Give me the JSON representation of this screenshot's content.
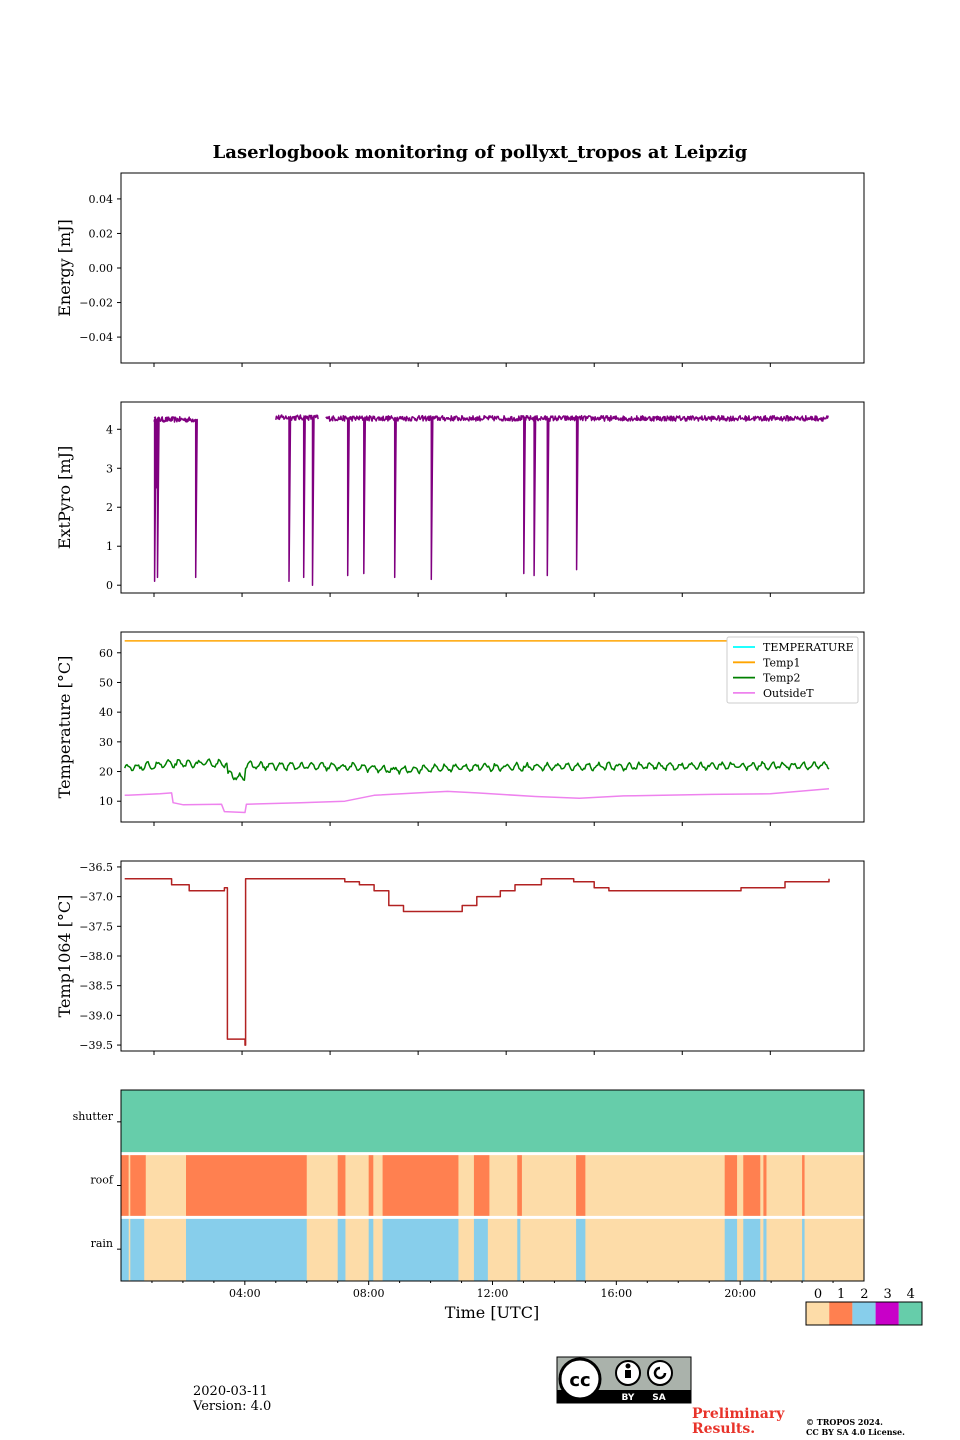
{
  "chart_data": {
    "type": "line",
    "title": "Laserlogbook monitoring of pollyxt_tropos at Leipzig",
    "xlabel": "Time [UTC]",
    "x_range_hours": [
      0,
      24
    ],
    "x_ticks": [
      "04:00",
      "08:00",
      "12:00",
      "16:00",
      "20:00"
    ],
    "panels": [
      {
        "id": "energy",
        "ylabel": "Energy [mJ]",
        "ylim": [
          -0.055,
          0.055
        ],
        "yticks": [
          0.04,
          0.02,
          0.0,
          -0.02,
          -0.04
        ],
        "ytick_labels": [
          "0.04",
          "0.02",
          "0.00",
          "−0.02",
          "−0.04"
        ],
        "series": []
      },
      {
        "id": "extpyro",
        "ylabel": "ExtPyro [mJ]",
        "ylim": [
          -0.2,
          4.7
        ],
        "yticks": [
          0,
          1,
          2,
          3,
          4
        ],
        "ytick_labels": [
          "0",
          "1",
          "2",
          "3",
          "4"
        ],
        "series": [
          {
            "name": "ExtPyro",
            "color": "#800080",
            "segments": [
              {
                "start": 1.0,
                "end": 2.45,
                "level": 4.25,
                "noise": 0.07,
                "dips": [
                  [
                    1.02,
                    0.1
                  ],
                  [
                    1.12,
                    0.2
                  ],
                  [
                    1.08,
                    2.5
                  ],
                  [
                    2.42,
                    0.2
                  ]
                ]
              },
              {
                "start": 5.15,
                "end": 6.6,
                "level": 4.3,
                "noise": 0.07,
                "dips": [
                  [
                    5.6,
                    0.1
                  ],
                  [
                    6.1,
                    0.2
                  ],
                  [
                    6.4,
                    0.0
                  ]
                ]
              },
              {
                "start": 6.85,
                "end": 24.0,
                "level": 4.28,
                "noise": 0.07,
                "dips": [
                  [
                    7.6,
                    0.25
                  ],
                  [
                    8.15,
                    0.3
                  ],
                  [
                    9.2,
                    0.2
                  ],
                  [
                    10.45,
                    0.15
                  ],
                  [
                    13.6,
                    0.3
                  ],
                  [
                    13.95,
                    0.25
                  ],
                  [
                    14.4,
                    0.25
                  ],
                  [
                    15.4,
                    0.4
                  ]
                ]
              }
            ]
          }
        ]
      },
      {
        "id": "temperature",
        "ylabel": "Temperature [°C]",
        "ylim": [
          3,
          67
        ],
        "yticks": [
          10,
          20,
          30,
          40,
          50,
          60
        ],
        "ytick_labels": [
          "10",
          "20",
          "30",
          "40",
          "50",
          "60"
        ],
        "legend_position": "top-right",
        "series": [
          {
            "name": "TEMPERATURE",
            "color": "#00ffff",
            "points": []
          },
          {
            "name": "Temp1",
            "color": "#ffa500",
            "points": [
              [
                0,
                64
              ],
              [
                24,
                64
              ]
            ]
          },
          {
            "name": "Temp2",
            "color": "#008000",
            "base": 21.5,
            "noise": 1.2,
            "points": [
              [
                0,
                21
              ],
              [
                1.5,
                22.5
              ],
              [
                3.5,
                22.8
              ],
              [
                3.4,
                22.8
              ],
              [
                3.45,
                19
              ],
              [
                4.1,
                18
              ],
              [
                4.1,
                22
              ],
              [
                8,
                21.5
              ],
              [
                9,
                20.5
              ],
              [
                12,
                21.5
              ],
              [
                24,
                22
              ]
            ]
          },
          {
            "name": "OutsideT",
            "color": "#ee82ee",
            "points": [
              [
                0,
                12
              ],
              [
                1.2,
                12.5
              ],
              [
                1.6,
                12.8
              ],
              [
                1.65,
                9.5
              ],
              [
                2.0,
                8.8
              ],
              [
                3.3,
                9
              ],
              [
                3.4,
                6.5
              ],
              [
                4.1,
                6.2
              ],
              [
                4.15,
                9
              ],
              [
                6,
                9.5
              ],
              [
                7.5,
                10
              ],
              [
                8.5,
                12
              ],
              [
                10,
                12.8
              ],
              [
                11,
                13.3
              ],
              [
                12,
                12.8
              ],
              [
                14,
                11.6
              ],
              [
                15.5,
                11
              ],
              [
                17,
                11.8
              ],
              [
                20,
                12.3
              ],
              [
                22,
                12.5
              ],
              [
                24,
                14.2
              ]
            ]
          }
        ]
      },
      {
        "id": "temp1064",
        "ylabel": "Temp1064 [°C]",
        "ylim": [
          -39.6,
          -36.4
        ],
        "yticks": [
          -36.5,
          -37.0,
          -37.5,
          -38.0,
          -38.5,
          -39.0,
          -39.5
        ],
        "ytick_labels": [
          "−36.5",
          "−37.0",
          "−37.5",
          "−38.0",
          "−38.5",
          "−39.0",
          "−39.5"
        ],
        "series": [
          {
            "name": "Temp1064",
            "color": "#b22222",
            "points": [
              [
                0,
                -36.7
              ],
              [
                1.5,
                -36.7
              ],
              [
                1.6,
                -36.8
              ],
              [
                2.2,
                -36.9
              ],
              [
                3.2,
                -36.9
              ],
              [
                3.4,
                -36.85
              ],
              [
                3.5,
                -39.4
              ],
              [
                4.0,
                -39.4
              ],
              [
                4.1,
                -39.5
              ],
              [
                4.12,
                -36.7
              ],
              [
                6.5,
                -36.7
              ],
              [
                7.5,
                -36.75
              ],
              [
                8.0,
                -36.8
              ],
              [
                8.5,
                -36.9
              ],
              [
                9.0,
                -37.15
              ],
              [
                9.5,
                -37.25
              ],
              [
                10.5,
                -37.25
              ],
              [
                11.5,
                -37.15
              ],
              [
                12.0,
                -37.0
              ],
              [
                12.8,
                -36.9
              ],
              [
                13.3,
                -36.8
              ],
              [
                14.2,
                -36.7
              ],
              [
                15.3,
                -36.75
              ],
              [
                16.0,
                -36.85
              ],
              [
                16.5,
                -36.9
              ],
              [
                20.0,
                -36.9
              ],
              [
                21.0,
                -36.85
              ],
              [
                22.5,
                -36.75
              ],
              [
                24.0,
                -36.7
              ]
            ]
          }
        ]
      },
      {
        "id": "flags",
        "type": "heatmap",
        "rows": [
          "shutter",
          "roof",
          "rain"
        ],
        "colorbar": {
          "labels": [
            "0",
            "1",
            "2",
            "3",
            "4"
          ],
          "colors": [
            "#fddca8",
            "#ff8050",
            "#87ceeb",
            "#c800c8",
            "#66cdaa"
          ]
        },
        "row_intervals": {
          "shutter": [
            [
              -1,
              25,
              4
            ]
          ],
          "roof": [
            [
              -1,
              0.25,
              1
            ],
            [
              0.25,
              0.3,
              0
            ],
            [
              0.3,
              0.8,
              1
            ],
            [
              2.1,
              6.0,
              1
            ],
            [
              7.0,
              7.25,
              1
            ],
            [
              8.0,
              8.15,
              1
            ],
            [
              8.45,
              10.9,
              1
            ],
            [
              11.4,
              11.9,
              1
            ],
            [
              12.8,
              12.95,
              1
            ],
            [
              14.7,
              15.0,
              1
            ],
            [
              19.5,
              19.9,
              1
            ],
            [
              20.1,
              20.65,
              1
            ],
            [
              20.75,
              20.85,
              1
            ],
            [
              22.0,
              22.08,
              1
            ]
          ],
          "rain": [
            [
              -1,
              0.25,
              2
            ],
            [
              0.3,
              0.75,
              2
            ],
            [
              2.1,
              6.0,
              2
            ],
            [
              7.0,
              7.25,
              2
            ],
            [
              8.0,
              8.15,
              2
            ],
            [
              8.45,
              10.9,
              2
            ],
            [
              11.4,
              11.85,
              2
            ],
            [
              12.8,
              12.9,
              2
            ],
            [
              14.7,
              15.0,
              2
            ],
            [
              19.5,
              19.9,
              2
            ],
            [
              20.1,
              20.65,
              2
            ],
            [
              20.75,
              20.85,
              2
            ],
            [
              22.0,
              22.08,
              2
            ]
          ]
        }
      }
    ]
  },
  "footer": {
    "date": "2020-03-11",
    "version": "Version: 4.0",
    "cc_main": "cc",
    "cc_by": "BY",
    "cc_sa": "SA",
    "prelim_line1": "Preliminary",
    "prelim_line2": "Results.",
    "copyright_line1": "© TROPOS 2024.",
    "copyright_line2": "CC BY SA 4.0 License."
  }
}
